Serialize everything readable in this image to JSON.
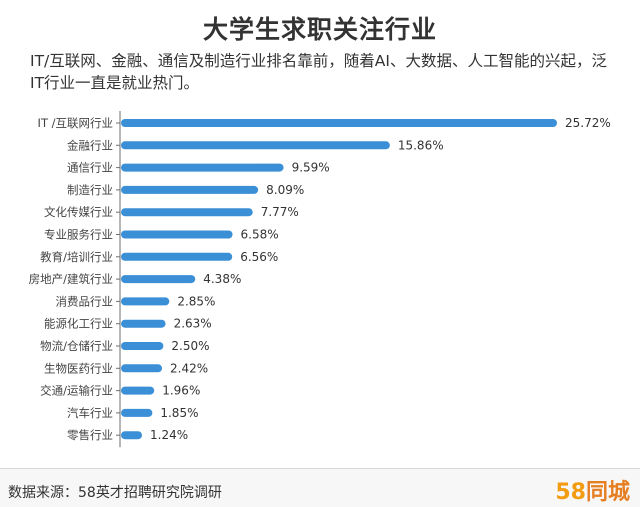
{
  "page": {
    "title": "大学生求职关注行业",
    "subtitle": "IT/互联网、金融、通信及制造行业排名靠前，随着AI、大数据、人工智能的兴起，泛IT行业一直是就业热门。",
    "source": "数据来源：58英才招聘研究院调研",
    "logo_num": "58",
    "logo_text": "同城",
    "bar_color": "#3b8fd6"
  },
  "chart_data": {
    "type": "bar",
    "orientation": "horizontal",
    "categories": [
      "IT /互联网行业",
      "金融行业",
      "通信行业",
      "制造行业",
      "文化传媒行业",
      "专业服务行业",
      "教育/培训行业",
      "房地产/建筑行业",
      "消费品行业",
      "能源化工行业",
      "物流/仓储行业",
      "生物医药行业",
      "交通/运输行业",
      "汽车行业",
      "零售行业"
    ],
    "values": [
      25.72,
      15.86,
      9.59,
      8.09,
      7.77,
      6.58,
      6.56,
      4.38,
      2.85,
      2.63,
      2.5,
      2.42,
      1.96,
      1.85,
      1.24
    ],
    "value_labels": [
      "25.72%",
      "15.86%",
      "9.59%",
      "8.09%",
      "7.77%",
      "6.58%",
      "6.56%",
      "4.38%",
      "2.85%",
      "2.63%",
      "2.50%",
      "2.42%",
      "1.96%",
      "1.85%",
      "1.24%"
    ],
    "xlim": [
      0,
      25.72
    ],
    "grid": false,
    "legend": "none"
  }
}
